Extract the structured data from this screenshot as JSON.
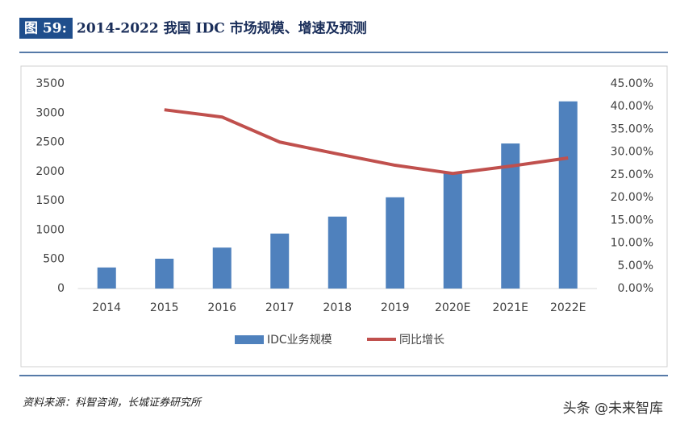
{
  "header": {
    "label": "图 59:",
    "title": "2014-2022 我国 IDC 市场规模、增速及预测"
  },
  "chart_data": {
    "type": "bar-line",
    "categories": [
      "2014",
      "2015",
      "2016",
      "2017",
      "2018",
      "2019",
      "2020E",
      "2021E",
      "2022E"
    ],
    "series": [
      {
        "name": "IDC业务规模",
        "type": "bar",
        "color": "#4f81bd",
        "values": [
          360,
          510,
          700,
          940,
          1230,
          1560,
          1990,
          2480,
          3200
        ]
      },
      {
        "name": "同比增长",
        "type": "line",
        "axis": "y2",
        "color": "#c0504d",
        "values": [
          null,
          39.3,
          37.7,
          32.2,
          29.6,
          27.1,
          25.3,
          26.9,
          28.7
        ]
      }
    ],
    "ylim": [
      0,
      3500
    ],
    "yticks": [
      0,
      500,
      1000,
      1500,
      2000,
      2500,
      3000,
      3500
    ],
    "y2lim": [
      0,
      45
    ],
    "y2ticks": [
      {
        "value": 0,
        "label": "0.00%"
      },
      {
        "value": 5,
        "label": "5.00%"
      },
      {
        "value": 10,
        "label": "10.00%"
      },
      {
        "value": 15,
        "label": "15.00%"
      },
      {
        "value": 20,
        "label": "20.00%"
      },
      {
        "value": 25,
        "label": "25.00%"
      },
      {
        "value": 30,
        "label": "30.00%"
      },
      {
        "value": 35,
        "label": "35.00%"
      },
      {
        "value": 40,
        "label": "40.00%"
      },
      {
        "value": 45,
        "label": "45.00%"
      }
    ],
    "legend": "bottom"
  },
  "source": "资料来源：科智咨询，长城证券研究所",
  "watermark": "头条 @未来智库"
}
